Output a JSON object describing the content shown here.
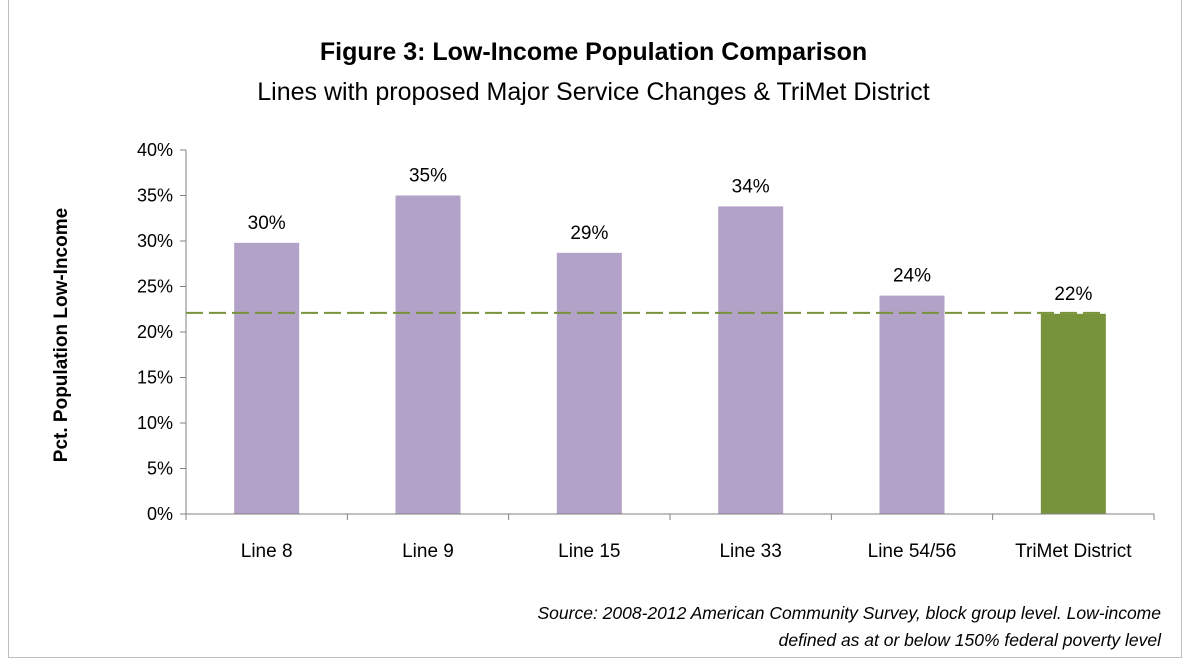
{
  "chart_data": {
    "type": "bar",
    "title": "Figure 3: Low-Income Population Comparison",
    "subtitle": "Lines with proposed Major Service Changes & TriMet District",
    "ylabel": "Pct. Population Low-Income",
    "xlabel": "",
    "categories": [
      "Line 8",
      "Line 9",
      "Line 15",
      "Line 33",
      "Line 54/56",
      "TriMet District"
    ],
    "values": [
      29.8,
      35.0,
      28.7,
      33.8,
      24.0,
      22.0
    ],
    "data_labels": [
      "30%",
      "35%",
      "29%",
      "34%",
      "24%",
      "22%"
    ],
    "yticks": [
      "0%",
      "5%",
      "10%",
      "15%",
      "20%",
      "25%",
      "30%",
      "35%",
      "40%"
    ],
    "ytick_values": [
      0,
      5,
      10,
      15,
      20,
      25,
      30,
      35,
      40
    ],
    "ylim": [
      0,
      40
    ],
    "reference_line": {
      "value": 22.1,
      "style": "dashed",
      "color": "#77933c"
    },
    "bar_colors": [
      "#b3a2c7",
      "#b3a2c7",
      "#b3a2c7",
      "#b3a2c7",
      "#b3a2c7",
      "#77933c"
    ],
    "grid": false,
    "legend": "none"
  },
  "source": {
    "line1": "Source: 2008-2012 American Community Survey, block group level. Low-income",
    "line2": "defined as at or below 150% federal poverty level"
  }
}
